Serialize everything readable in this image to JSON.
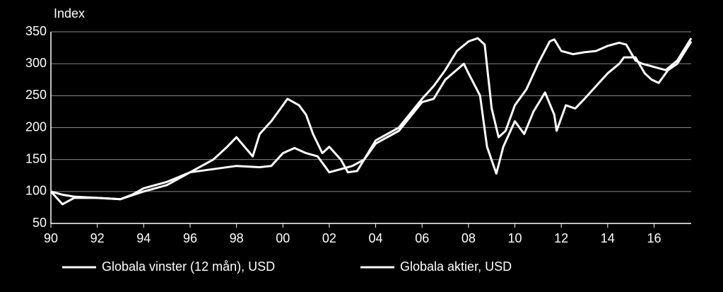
{
  "chart_data": {
    "type": "line",
    "y_label": "Index",
    "xlim": [
      1990,
      2017.6
    ],
    "xticks": [
      {
        "value": 1990,
        "label": "90"
      },
      {
        "value": 1992,
        "label": "92"
      },
      {
        "value": 1994,
        "label": "94"
      },
      {
        "value": 1996,
        "label": "96"
      },
      {
        "value": 1998,
        "label": "98"
      },
      {
        "value": 2000,
        "label": "00"
      },
      {
        "value": 2002,
        "label": "02"
      },
      {
        "value": 2004,
        "label": "04"
      },
      {
        "value": 2006,
        "label": "06"
      },
      {
        "value": 2008,
        "label": "08"
      },
      {
        "value": 2010,
        "label": "10"
      },
      {
        "value": 2012,
        "label": "12"
      },
      {
        "value": 2014,
        "label": "14"
      },
      {
        "value": 2016,
        "label": "16"
      }
    ],
    "ylim": [
      50,
      350
    ],
    "yticks": [
      50,
      100,
      150,
      200,
      250,
      300,
      350
    ],
    "grid": true,
    "series": [
      {
        "name": "Globala vinster (12 mån), USD",
        "color": "#ffffff",
        "x": [
          1990,
          1990.5,
          1991,
          1992,
          1993,
          1993.5,
          1994,
          1995,
          1996,
          1997,
          1998,
          1999,
          1999.5,
          2000,
          2000.5,
          2001,
          2001.5,
          2002,
          2002.5,
          2003,
          2003.5,
          2004,
          2005,
          2006,
          2006.5,
          2007,
          2007.5,
          2008,
          2008.4,
          2008.7,
          2009,
          2009.3,
          2009.6,
          2010,
          2010.5,
          2011,
          2011.5,
          2011.7,
          2012,
          2012.5,
          2013,
          2013.5,
          2014,
          2014.5,
          2014.8,
          2015.2,
          2015.5,
          2016,
          2016.5,
          2017,
          2017.6
        ],
        "values": [
          100,
          95,
          92,
          90,
          88,
          95,
          105,
          115,
          130,
          135,
          140,
          138,
          140,
          160,
          168,
          160,
          155,
          130,
          135,
          140,
          150,
          180,
          200,
          245,
          265,
          290,
          320,
          335,
          340,
          330,
          230,
          185,
          195,
          235,
          260,
          300,
          335,
          338,
          320,
          315,
          318,
          320,
          328,
          333,
          330,
          305,
          300,
          295,
          290,
          305,
          340
        ]
      },
      {
        "name": "Globala aktier, USD",
        "color": "#ffffff",
        "x": [
          1990,
          1990.5,
          1991,
          1992,
          1993,
          1994,
          1995,
          1996,
          1997,
          1997.6,
          1998,
          1998.7,
          1999,
          1999.5,
          2000,
          2000.2,
          2000.7,
          2001,
          2001.3,
          2001.7,
          2002,
          2002.5,
          2002.8,
          2003.2,
          2003.5,
          2004,
          2005,
          2006,
          2006.5,
          2007,
          2007.8,
          2008,
          2008.5,
          2008.8,
          2009.2,
          2009.5,
          2010,
          2010.4,
          2010.8,
          2011.3,
          2011.7,
          2011.8,
          2012.2,
          2012.6,
          2013,
          2013.5,
          2014,
          2014.5,
          2014.7,
          2015.2,
          2015.6,
          2015.9,
          2016.2,
          2016.6,
          2017,
          2017.6
        ],
        "values": [
          100,
          80,
          90,
          90,
          88,
          100,
          110,
          130,
          150,
          170,
          185,
          155,
          190,
          210,
          235,
          245,
          235,
          220,
          190,
          160,
          170,
          150,
          130,
          132,
          150,
          175,
          195,
          240,
          245,
          275,
          300,
          285,
          250,
          170,
          128,
          170,
          210,
          190,
          225,
          255,
          220,
          195,
          235,
          230,
          245,
          265,
          285,
          300,
          310,
          310,
          285,
          275,
          270,
          290,
          300,
          335
        ]
      }
    ]
  }
}
